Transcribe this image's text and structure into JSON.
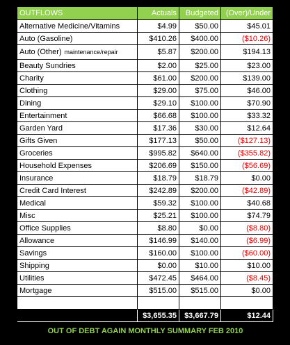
{
  "header": [
    "OUTFLOWS",
    "Actuals",
    "Budgeted",
    "(Over)/Under"
  ],
  "rows": [
    {
      "label": "Alternative Medicine/Vitamins",
      "actual": "$4.99",
      "budgeted": "$50.00",
      "difference": "$45.01"
    },
    {
      "label": "Auto (Gasoline)",
      "actual": "$410.26",
      "budgeted": "$400.00",
      "difference": "($10.26)"
    },
    {
      "label": "Auto (Other)",
      "sublabel": "maintenance/repair",
      "actual": "$5.87",
      "budgeted": "$200.00",
      "difference": "$194.13"
    },
    {
      "label": "Beauty Sundries",
      "actual": "$2.00",
      "budgeted": "$25.00",
      "difference": "$23.00"
    },
    {
      "label": "Charity",
      "actual": "$61.00",
      "budgeted": "$200.00",
      "difference": "$139.00"
    },
    {
      "label": "Clothing",
      "actual": "$29.00",
      "budgeted": "$75.00",
      "difference": "$46.00"
    },
    {
      "label": "Dining",
      "actual": "$29.10",
      "budgeted": "$100.00",
      "difference": "$70.90"
    },
    {
      "label": "Entertainment",
      "actual": "$66.68",
      "budgeted": "$100.00",
      "difference": "$33.32"
    },
    {
      "label": "Garden Yard",
      "actual": "$17.36",
      "budgeted": "$30.00",
      "difference": "$12.64"
    },
    {
      "label": "Gifts Given",
      "actual": "$177.13",
      "budgeted": "$50.00",
      "difference": "($127.13)"
    },
    {
      "label": "Groceries",
      "actual": "$995.82",
      "budgeted": "$640.00",
      "difference": "($355.82)"
    },
    {
      "label": "Household Expenses",
      "actual": "$206.69",
      "budgeted": "$150.00",
      "difference": "($56.69)"
    },
    {
      "label": "Insurance",
      "actual": "$18.79",
      "budgeted": "$18.79",
      "difference": "$0.00"
    },
    {
      "label": "Credit Card Interest",
      "actual": "$242.89",
      "budgeted": "$200.00",
      "difference": "($42.89)"
    },
    {
      "label": "Medical",
      "actual": "$59.32",
      "budgeted": "$100.00",
      "difference": "$40.68"
    },
    {
      "label": "Misc",
      "actual": "$25.21",
      "budgeted": "$100.00",
      "difference": "$74.79"
    },
    {
      "label": "Office Supplies",
      "actual": "$8.80",
      "budgeted": "$0.00",
      "difference": "($8.80)"
    },
    {
      "label": "Allowance",
      "actual": "$146.99",
      "budgeted": "$140.00",
      "difference": "($6.99)"
    },
    {
      "label": "Savings",
      "actual": "$160.00",
      "budgeted": "$100.00",
      "difference": "($60.00)"
    },
    {
      "label": "Shipping",
      "actual": "$0.00",
      "budgeted": "$10.00",
      "difference": "$10.00"
    },
    {
      "label": "Utilities",
      "actual": "$472.45",
      "budgeted": "$464.00",
      "difference": "($8.45)"
    },
    {
      "label": "Mortgage",
      "actual": "$515.00",
      "budgeted": "$515.00",
      "difference": "$0.00"
    }
  ],
  "totals": {
    "actual": "$3,655.35",
    "budgeted": "$3,667.79",
    "difference": "$12.44"
  },
  "footer": "OUT OF DEBT AGAIN MONTHLY SUMMARY FEB 2010"
}
